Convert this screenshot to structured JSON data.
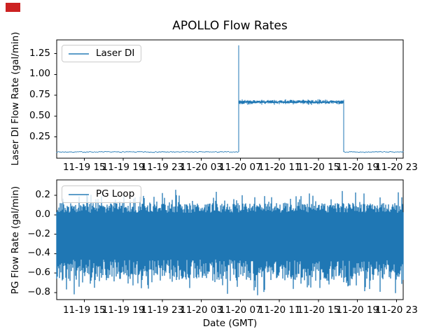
{
  "annotation_marker": {
    "color": "#cc2222"
  },
  "chart_data": [
    {
      "type": "line",
      "title": "APOLLO Flow Rates",
      "ylabel": "Laser DI Flow Rate (gal/min)",
      "xlabel": "",
      "legend_label": "Laser DI",
      "legend_position": "upper left",
      "line_color": "#1f77b4",
      "grid": false,
      "ylim": [
        0,
        1.42
      ],
      "yticks": [
        0.25,
        0.5,
        0.75,
        1.0,
        1.25
      ],
      "ytick_labels": [
        "0.25",
        "0.50",
        "0.75",
        "1.00",
        "1.25"
      ],
      "xtick_labels": [
        "11-19 15",
        "11-19 19",
        "11-19 23",
        "11-20 03",
        "11-20 07",
        "11-20 11",
        "11-20 15",
        "11-20 19",
        "11-20 23"
      ],
      "xlim_time": [
        "11-19 12:10",
        "11-20 23:40"
      ],
      "profile": {
        "description": "flat baseline, sharp turn-on spike, noisy plateau, sharp turn-off back to baseline",
        "baseline_value": 0.07,
        "spike_peak": 1.35,
        "plateau_value": 0.67,
        "plateau_start_time": "11-20 06:50",
        "plateau_end_time": "11-20 17:30",
        "plateau_start_frac": 0.526,
        "plateau_end_frac": 0.828,
        "baseline_noise": 0.012,
        "plateau_noise": 0.016
      }
    },
    {
      "type": "line",
      "title": "",
      "ylabel": "PG Flow Rate (gal/min)",
      "xlabel": "Date (GMT)",
      "legend_label": "PG Loop",
      "legend_position": "upper left",
      "line_color": "#1f77b4",
      "grid": false,
      "ylim": [
        -0.87,
        0.36
      ],
      "yticks": [
        0.2,
        0.0,
        -0.2,
        -0.4,
        -0.6,
        -0.8
      ],
      "ytick_labels": [
        "0.2",
        "0.0",
        "−0.2",
        "−0.4",
        "−0.6",
        "−0.8"
      ],
      "xtick_labels": [
        "11-19 15",
        "11-19 19",
        "11-19 23",
        "11-20 03",
        "11-20 07",
        "11-20 11",
        "11-20 15",
        "11-20 19",
        "11-20 23"
      ],
      "xlim_time": [
        "11-19 12:10",
        "11-20 23:40"
      ],
      "profile": {
        "description": "dense high-frequency oscillation filling a solid band with ragged spiky edges",
        "mean": -0.27,
        "band_top_typical": 0.08,
        "band_top_max": 0.28,
        "band_bottom_typical": -0.6,
        "band_bottom_min": -0.84
      }
    }
  ]
}
